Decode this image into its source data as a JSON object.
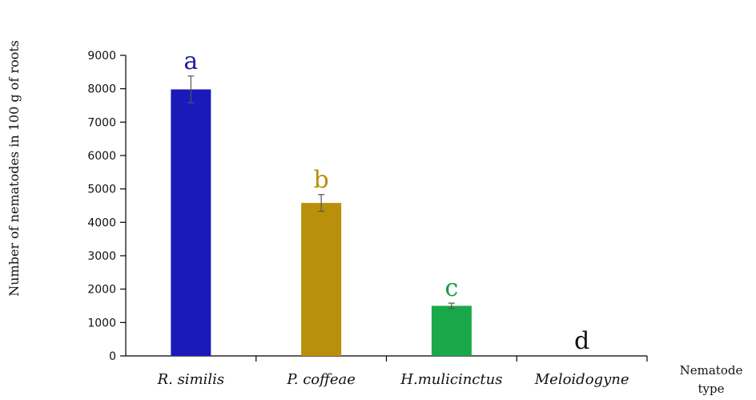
{
  "chart_data": {
    "type": "bar",
    "ylabel": "Number of nematodes in 100 g of roots",
    "xlabel_lines": [
      "Nematode",
      "type"
    ],
    "categories": [
      "R. similis",
      "P. coffeae",
      "H.mulicinctus",
      "Meloidogyne"
    ],
    "values": [
      7980,
      4580,
      1500,
      0
    ],
    "errors": [
      400,
      250,
      80,
      0
    ],
    "significance": [
      "a",
      "b",
      "c",
      "d"
    ],
    "colors": [
      "#1a1aba",
      "#b8900b",
      "#1aa84a",
      "#1a1aba"
    ],
    "sig_colors": [
      "#1f1f9e",
      "#b8900b",
      "#1a9a45",
      "#111111"
    ],
    "ylim": [
      0,
      9000
    ],
    "yticks": [
      0,
      1000,
      2000,
      3000,
      4000,
      5000,
      6000,
      7000,
      8000,
      9000
    ],
    "grid": false,
    "legend": "none"
  }
}
